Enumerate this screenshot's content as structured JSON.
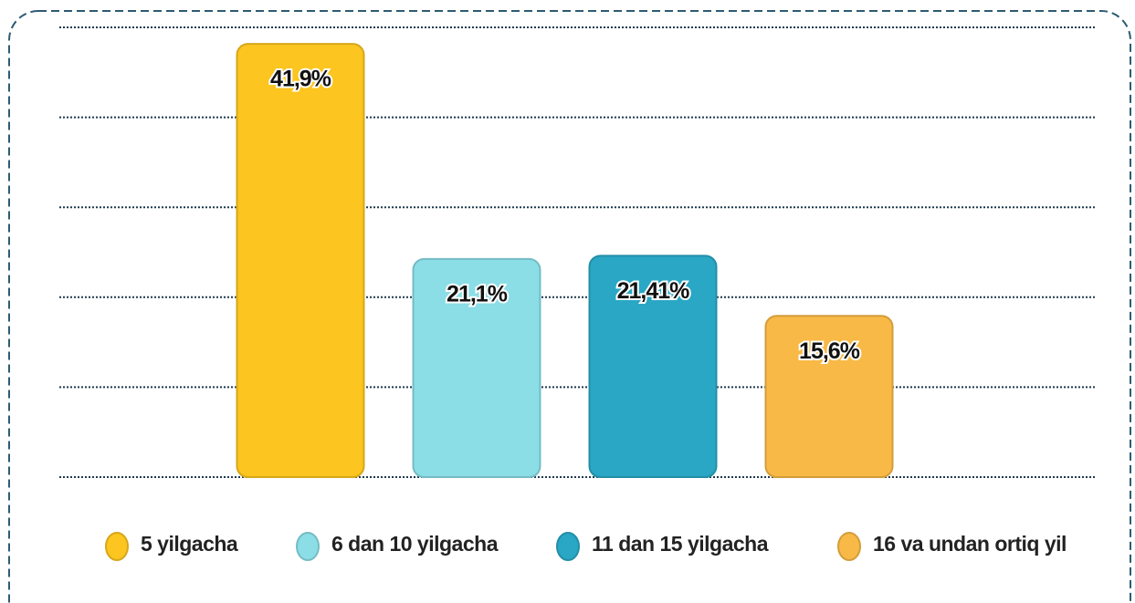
{
  "chart_data": {
    "type": "bar",
    "categories": [
      "5 yilgacha",
      "6 dan 10 yilgacha",
      "11 dan 15 yilgacha",
      "16 va undan ortiq yil"
    ],
    "values": [
      41.9,
      21.1,
      21.41,
      15.6
    ],
    "value_labels": [
      "41,9%",
      "21,1%",
      "21,41%",
      "15,6%"
    ],
    "colors": [
      "#fcc51f",
      "#8bdde6",
      "#29a7c5",
      "#f8b946"
    ],
    "ylim": [
      0,
      43.5
    ],
    "yticks": [
      0,
      8.7,
      17.4,
      26.1,
      34.8,
      43.5
    ],
    "grid": true,
    "legend": "bottom"
  }
}
